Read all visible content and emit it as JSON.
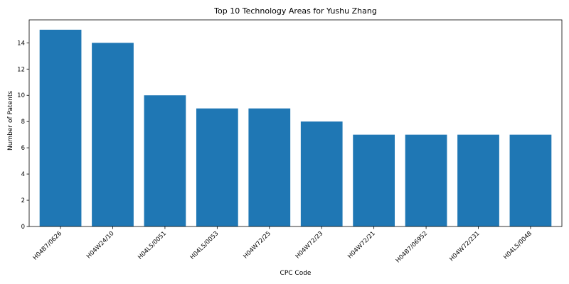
{
  "chart_data": {
    "type": "bar",
    "title": "Top 10 Technology Areas for Yushu Zhang",
    "xlabel": "CPC Code",
    "ylabel": "Number of Patents",
    "categories": [
      "H04B7/0626",
      "H04W24/10",
      "H04L5/0051",
      "H04L5/0053",
      "H04W72/25",
      "H04W72/23",
      "H04W72/21",
      "H04B7/06952",
      "H04W72/231",
      "H04L5/0048"
    ],
    "values": [
      15,
      14,
      10,
      9,
      9,
      8,
      7,
      7,
      7,
      7
    ],
    "ylim": [
      0,
      15.75
    ],
    "yticks": [
      0,
      2,
      4,
      6,
      8,
      10,
      12,
      14
    ],
    "bar_color": "#1f77b4",
    "grid": false,
    "legend": "none"
  }
}
